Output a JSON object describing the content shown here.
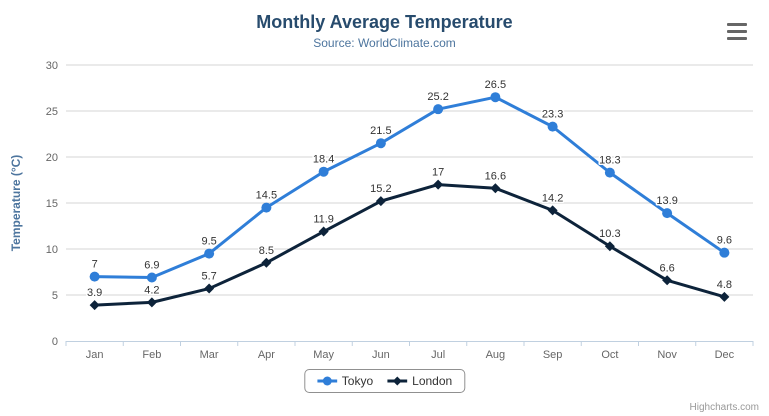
{
  "chart_data": {
    "type": "line",
    "title": "Monthly Average Temperature",
    "subtitle": "Source: WorldClimate.com",
    "categories": [
      "Jan",
      "Feb",
      "Mar",
      "Apr",
      "May",
      "Jun",
      "Jul",
      "Aug",
      "Sep",
      "Oct",
      "Nov",
      "Dec"
    ],
    "series": [
      {
        "name": "Tokyo",
        "marker": "circle",
        "color": "#2f7ed8",
        "values": [
          7,
          6.9,
          9.5,
          14.5,
          18.4,
          21.5,
          25.2,
          26.5,
          23.3,
          18.3,
          13.9,
          9.6
        ]
      },
      {
        "name": "London",
        "marker": "diamond",
        "color": "#0d233a",
        "values": [
          3.9,
          4.2,
          5.7,
          8.5,
          11.9,
          15.2,
          17,
          16.6,
          14.2,
          10.3,
          6.6,
          4.8
        ]
      }
    ],
    "xlabel": "",
    "ylabel": "Temperature (°C)",
    "ylim": [
      0,
      30
    ],
    "ytick_interval": 5,
    "grid": true,
    "data_labels": true,
    "legend_position": "bottom"
  },
  "credits": {
    "label": "Highcharts.com"
  },
  "icons": {
    "context_menu": "hamburger-icon"
  },
  "colors": {
    "title": "#274b6d",
    "subtitle": "#4d759e",
    "axis_label": "#666666",
    "axis_title": "#4d759e",
    "gridline": "#d4d4d4",
    "axis_line": "#c0d0e0",
    "data_label": "#333333",
    "legend_border": "#909090",
    "credits": "#999999",
    "menu_icon": "#666666",
    "background": "#ffffff"
  }
}
